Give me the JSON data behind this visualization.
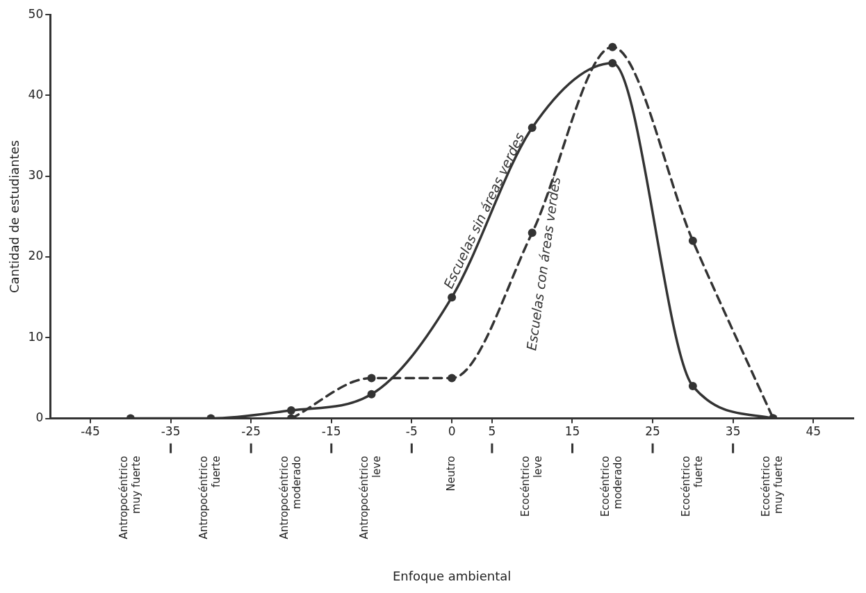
{
  "chart_data": {
    "type": "line",
    "ylabel": "Cantidad de estudiantes",
    "xlim": [
      -50,
      50
    ],
    "xticks": [
      -45,
      -35,
      -25,
      -15,
      -5,
      0,
      5,
      15,
      25,
      35,
      45
    ],
    "ylim": [
      0,
      50
    ],
    "yticks": [
      0,
      10,
      20,
      30,
      40,
      50
    ],
    "annotations": [
      "Antropocéntrico muy fuerte",
      "Antropocéntrico fuerte",
      "Antropocéntrico moderado",
      "Antropocéntrico leve",
      "Neutro",
      "Ecocéntrico leve",
      "Ecocéntrico moderado",
      "Ecocéntrico fuerte",
      "Ecocéntrico muy fuerte",
      "Enfoque ambiental"
    ],
    "grid": false,
    "legend": false,
    "marker": "circle",
    "series": [
      {
        "name": "Escuelas sin áreas verdes",
        "color": "#333333",
        "line_style": "solid",
        "x": [
          -40,
          -30,
          -20,
          -10,
          0,
          10,
          20,
          30,
          40
        ],
        "values": [
          0,
          0,
          1,
          3,
          15,
          36,
          44,
          4,
          0
        ]
      },
      {
        "name": "Escuelas con áreas verdes",
        "color": "#333333",
        "line_style": "dashed",
        "x": [
          -20,
          -10,
          0,
          10,
          20,
          30,
          40
        ],
        "values": [
          0,
          5,
          5,
          23,
          46,
          22,
          0
        ]
      }
    ]
  }
}
